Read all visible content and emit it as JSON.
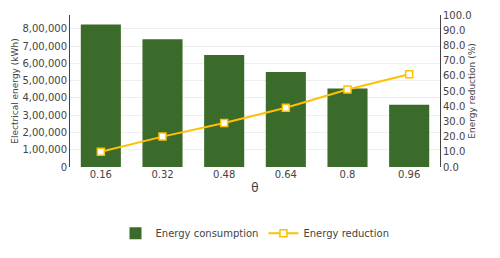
{
  "chart_data": {
    "type": "bar",
    "categories": [
      "0.16",
      "0.32",
      "0.48",
      "0.64",
      "0.8",
      "0.96"
    ],
    "series": [
      {
        "name": "Energy consumption",
        "type": "bar",
        "color": "#3a6b2a",
        "values": [
          825000,
          740000,
          648000,
          550000,
          455000,
          360000
        ]
      },
      {
        "name": "Energy reduction",
        "type": "line",
        "axis": "y2",
        "color": "#FFC000",
        "marker": "square",
        "values": [
          10.0,
          20.0,
          29.0,
          39.0,
          51.0,
          61.0
        ]
      }
    ],
    "xlabel": "θ",
    "ylabel": "Electrical energy (kWh)",
    "y2label": "Energy reduction (%)",
    "ylim": [
      0,
      880000
    ],
    "yticks": [
      0,
      {
        "value": 100000,
        "label": "1,00,000"
      },
      {
        "value": 200000,
        "label": "2,00,000"
      },
      {
        "value": 300000,
        "label": "3,00,000"
      },
      {
        "value": 400000,
        "label": "4,00,000"
      },
      {
        "value": 500000,
        "label": "5,00,000"
      },
      {
        "value": 600000,
        "label": "6,00,000"
      },
      {
        "value": 700000,
        "label": "7,00,000"
      },
      {
        "value": 800000,
        "label": "8,00,000"
      }
    ],
    "y2lim": [
      0.0,
      100.0
    ],
    "y2ticks": [
      {
        "value": 0,
        "label": "0.0"
      },
      {
        "value": 10,
        "label": "10.0"
      },
      {
        "value": 20,
        "label": "20.0"
      },
      {
        "value": 30,
        "label": "30.0"
      },
      {
        "value": 40,
        "label": "40.0"
      },
      {
        "value": 50,
        "label": "50.0"
      },
      {
        "value": 60,
        "label": "60.0"
      },
      {
        "value": 70,
        "label": "70.0"
      },
      {
        "value": 80,
        "label": "80.0"
      },
      {
        "value": 90,
        "label": "90.0"
      },
      {
        "value": 100,
        "label": "100.0"
      }
    ],
    "grid": true,
    "legend": "bottom"
  }
}
